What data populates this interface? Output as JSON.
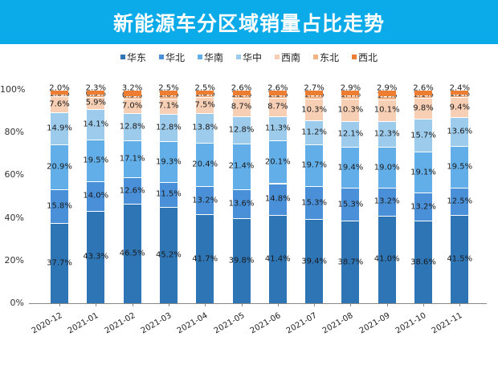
{
  "header": {
    "title": "新能源车分区域销量占比走势"
  },
  "legend": [
    {
      "name": "华东",
      "color": "#2E75B6"
    },
    {
      "name": "华北",
      "color": "#4A90D9"
    },
    {
      "name": "华南",
      "color": "#62AEE8"
    },
    {
      "name": "华中",
      "color": "#9DCBEB"
    },
    {
      "name": "西南",
      "color": "#F6CFB5"
    },
    {
      "name": "东北",
      "color": "#F3B283"
    },
    {
      "name": "西北",
      "color": "#ED7D31"
    }
  ],
  "yaxis": {
    "ticks": [
      "0%",
      "20%",
      "40%",
      "60%",
      "80%",
      "100%"
    ]
  },
  "chart_data": {
    "type": "bar",
    "stacked": true,
    "percent": true,
    "title": "新能源车分区域销量占比走势",
    "xlabel": "",
    "ylabel": "",
    "ylim": [
      0,
      100
    ],
    "legend_position": "top",
    "grid": false,
    "categories": [
      "2020-12",
      "2021-01",
      "2021-02",
      "2021-03",
      "2021-04",
      "2021-05",
      "2021-06",
      "2021-07",
      "2021-08",
      "2021-09",
      "2021-10",
      "2021-11"
    ],
    "series": [
      {
        "name": "华东",
        "color": "#2E75B6",
        "values": [
          37.7,
          43.3,
          46.5,
          45.2,
          41.7,
          39.8,
          41.4,
          39.4,
          38.7,
          41.0,
          38.6,
          41.5
        ]
      },
      {
        "name": "华北",
        "color": "#4A90D9",
        "values": [
          15.8,
          14.0,
          12.6,
          11.5,
          13.2,
          13.6,
          14.8,
          15.3,
          15.3,
          13.2,
          13.2,
          12.5
        ]
      },
      {
        "name": "华南",
        "color": "#62AEE8",
        "values": [
          20.9,
          19.5,
          17.1,
          19.3,
          20.4,
          21.4,
          20.1,
          19.7,
          19.4,
          19.0,
          19.1,
          19.5
        ]
      },
      {
        "name": "华中",
        "color": "#9DCBEB",
        "values": [
          14.9,
          14.1,
          12.8,
          12.8,
          13.8,
          12.8,
          11.3,
          11.2,
          12.1,
          12.3,
          15.7,
          13.6
        ]
      },
      {
        "name": "西南",
        "color": "#F6CFB5",
        "values": [
          7.6,
          5.9,
          7.0,
          7.1,
          7.5,
          8.7,
          8.7,
          10.3,
          10.3,
          10.1,
          9.8,
          9.4
        ]
      },
      {
        "name": "东北",
        "color": "#F3B283",
        "values": [
          1.0,
          0.9,
          0.9,
          1.6,
          1.0,
          1.2,
          1.1,
          1.4,
          1.4,
          1.4,
          1.1,
          1.1
        ]
      },
      {
        "name": "西北",
        "color": "#ED7D31",
        "values": [
          2.0,
          2.3,
          3.2,
          2.5,
          2.5,
          2.6,
          2.6,
          2.7,
          2.9,
          2.9,
          2.6,
          2.4
        ]
      }
    ]
  }
}
